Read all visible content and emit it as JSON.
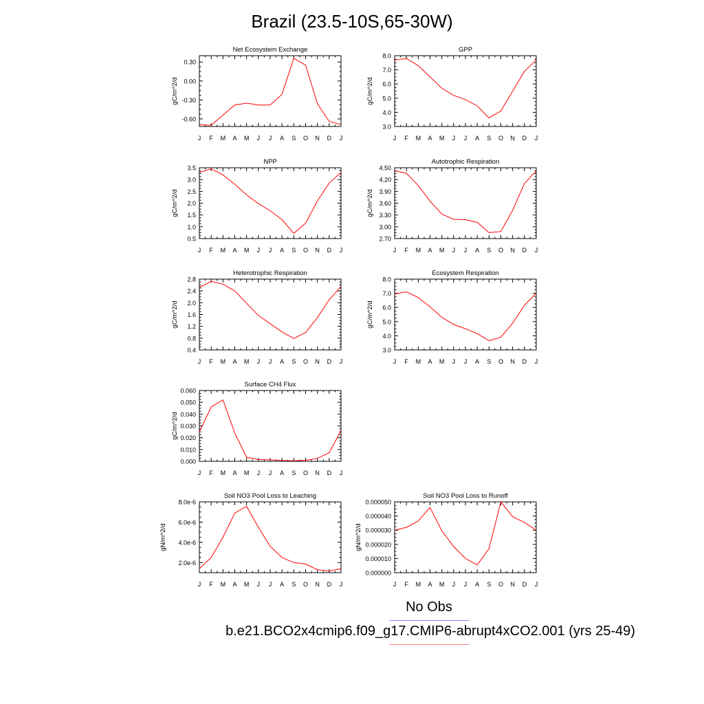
{
  "title": "Brazil (23.5-10S,65-30W)",
  "colors": {
    "model_line": "#ff0000",
    "obs_legend_line": "#7f7fff",
    "model_legend_line": "#ff7f7f"
  },
  "legend": {
    "obs_label": "No Obs",
    "model_label": "b.e21.BCO2x4cmip6.f09_g17.CMIP6-abrupt4xCO2.001 (yrs 25-49)"
  },
  "chart_data": [
    {
      "type": "line",
      "title": "Net Ecosystem Exchange",
      "xlabel": "",
      "ylabel": "gC/m^2/d",
      "x": [
        "J",
        "F",
        "M",
        "A",
        "M",
        "J",
        "J",
        "A",
        "S",
        "O",
        "N",
        "D",
        "J"
      ],
      "ylim": [
        -0.72,
        0.4
      ],
      "yticks": [
        0.3,
        0.0,
        -0.3,
        -0.6
      ],
      "yticklabels": [
        "0.30",
        "0.00",
        "-0.30",
        "-0.60"
      ],
      "series": [
        {
          "values": [
            -0.69,
            -0.7,
            -0.54,
            -0.38,
            -0.35,
            -0.38,
            -0.38,
            -0.21,
            0.36,
            0.25,
            -0.36,
            -0.64,
            -0.69
          ]
        }
      ]
    },
    {
      "type": "line",
      "title": "GPP",
      "xlabel": "",
      "ylabel": "gC/m^2/d",
      "x": [
        "J",
        "F",
        "M",
        "A",
        "M",
        "J",
        "J",
        "A",
        "S",
        "O",
        "N",
        "D",
        "J"
      ],
      "ylim": [
        3.0,
        8.0
      ],
      "yticks": [
        3.0,
        4.0,
        5.0,
        6.0,
        7.0,
        8.0
      ],
      "yticklabels": [
        "3.0",
        "4.0",
        "5.0",
        "6.0",
        "7.0",
        "8.0"
      ],
      "series": [
        {
          "values": [
            7.7,
            7.8,
            7.3,
            6.5,
            5.7,
            5.2,
            4.9,
            4.45,
            3.6,
            4.1,
            5.5,
            6.9,
            7.7
          ]
        }
      ]
    },
    {
      "type": "line",
      "title": "NPP",
      "xlabel": "",
      "ylabel": "gC/m^2/d",
      "x": [
        "J",
        "F",
        "M",
        "A",
        "M",
        "J",
        "J",
        "A",
        "S",
        "O",
        "N",
        "D",
        "J"
      ],
      "ylim": [
        0.5,
        3.5
      ],
      "yticks": [
        0.5,
        1.0,
        1.5,
        2.0,
        2.5,
        3.0,
        3.5
      ],
      "yticklabels": [
        "0.5",
        "1.0",
        "1.5",
        "2.0",
        "2.5",
        "3.0",
        "3.5"
      ],
      "series": [
        {
          "values": [
            3.3,
            3.45,
            3.2,
            2.8,
            2.35,
            1.98,
            1.68,
            1.3,
            0.72,
            1.15,
            2.1,
            2.85,
            3.3
          ]
        }
      ]
    },
    {
      "type": "line",
      "title": "Autotrophic Respiration",
      "xlabel": "",
      "ylabel": "gC/m^2/d",
      "x": [
        "J",
        "F",
        "M",
        "A",
        "M",
        "J",
        "J",
        "A",
        "S",
        "O",
        "N",
        "D",
        "J"
      ],
      "ylim": [
        2.7,
        4.5
      ],
      "yticks": [
        2.7,
        3.0,
        3.3,
        3.6,
        3.9,
        4.2,
        4.5
      ],
      "yticklabels": [
        "2.70",
        "3.00",
        "3.30",
        "3.60",
        "3.90",
        "4.20",
        "4.50"
      ],
      "series": [
        {
          "values": [
            4.42,
            4.36,
            4.05,
            3.65,
            3.32,
            3.19,
            3.18,
            3.11,
            2.85,
            2.88,
            3.42,
            4.1,
            4.42
          ]
        }
      ]
    },
    {
      "type": "line",
      "title": "Heterotrophic Respiration",
      "xlabel": "",
      "ylabel": "gC/m^2/d",
      "x": [
        "J",
        "F",
        "M",
        "A",
        "M",
        "J",
        "J",
        "A",
        "S",
        "O",
        "N",
        "D",
        "J"
      ],
      "ylim": [
        0.4,
        2.8
      ],
      "yticks": [
        0.4,
        0.8,
        1.2,
        1.6,
        2.0,
        2.4,
        2.8
      ],
      "yticklabels": [
        "0.4",
        "0.8",
        "1.2",
        "1.6",
        "2.0",
        "2.4",
        "2.8"
      ],
      "series": [
        {
          "values": [
            2.52,
            2.72,
            2.63,
            2.4,
            1.98,
            1.57,
            1.29,
            1.01,
            0.79,
            0.99,
            1.5,
            2.1,
            2.55
          ]
        }
      ]
    },
    {
      "type": "line",
      "title": "Ecosystem Respiration",
      "xlabel": "",
      "ylabel": "gC/m^2/d",
      "x": [
        "J",
        "F",
        "M",
        "A",
        "M",
        "J",
        "J",
        "A",
        "S",
        "O",
        "N",
        "D",
        "J"
      ],
      "ylim": [
        3.0,
        8.0
      ],
      "yticks": [
        3.0,
        4.0,
        5.0,
        6.0,
        7.0,
        8.0
      ],
      "yticklabels": [
        "3.0",
        "4.0",
        "5.0",
        "6.0",
        "7.0",
        "8.0"
      ],
      "series": [
        {
          "values": [
            6.95,
            7.1,
            6.7,
            6.05,
            5.3,
            4.8,
            4.5,
            4.15,
            3.65,
            3.9,
            4.9,
            6.15,
            7.0
          ]
        }
      ]
    },
    {
      "type": "line",
      "title": "Surface CH4 Flux",
      "xlabel": "",
      "ylabel": "gC/m^2/d",
      "x": [
        "J",
        "F",
        "M",
        "A",
        "M",
        "J",
        "J",
        "A",
        "S",
        "O",
        "N",
        "D",
        "J"
      ],
      "ylim": [
        0.0,
        0.06
      ],
      "yticks": [
        0.0,
        0.01,
        0.02,
        0.03,
        0.04,
        0.05,
        0.06
      ],
      "yticklabels": [
        "0.000",
        "0.010",
        "0.020",
        "0.030",
        "0.040",
        "0.050",
        "0.060"
      ],
      "series": [
        {
          "values": [
            0.025,
            0.046,
            0.052,
            0.024,
            0.0035,
            0.0015,
            0.0012,
            0.0007,
            0.0004,
            0.0009,
            0.0025,
            0.0073,
            0.026
          ]
        }
      ]
    },
    {
      "type": "line",
      "title": "Soil NO3 Pool Loss to Leaching",
      "xlabel": "",
      "ylabel": "gN/m^2/d",
      "x": [
        "J",
        "F",
        "M",
        "A",
        "M",
        "J",
        "J",
        "A",
        "S",
        "O",
        "N",
        "D",
        "J"
      ],
      "ylim": [
        1e-06,
        8e-06
      ],
      "yticks": [
        2e-06,
        4e-06,
        6e-06,
        8e-06
      ],
      "yticklabels": [
        "2.0e-6",
        "4.0e-6",
        "6.0e-6",
        "8.0e-6"
      ],
      "series": [
        {
          "values": [
            1.4e-06,
            2.5e-06,
            4.5e-06,
            6.9e-06,
            7.55e-06,
            5.5e-06,
            3.6e-06,
            2.5e-06,
            2e-06,
            1.85e-06,
            1.3e-06,
            1.15e-06,
            1.4e-06
          ]
        }
      ]
    },
    {
      "type": "line",
      "title": "Soil NO3 Pool Loss to Runoff",
      "xlabel": "",
      "ylabel": "gN/m^2/d",
      "x": [
        "J",
        "F",
        "M",
        "A",
        "M",
        "J",
        "J",
        "A",
        "S",
        "O",
        "N",
        "D",
        "J"
      ],
      "ylim": [
        0.0,
        5e-05
      ],
      "yticks": [
        0.0,
        1e-05,
        2e-05,
        3e-05,
        4e-05,
        5e-05
      ],
      "yticklabels": [
        "0.000000",
        "0.000010",
        "0.000020",
        "0.000030",
        "0.000040",
        "0.000050"
      ],
      "series": [
        {
          "values": [
            3e-05,
            3.2e-05,
            3.65e-05,
            4.6e-05,
            2.95e-05,
            1.85e-05,
            1e-05,
            5.5e-06,
            1.7e-05,
            5e-05,
            3.95e-05,
            3.55e-05,
            3e-05
          ]
        }
      ]
    }
  ]
}
